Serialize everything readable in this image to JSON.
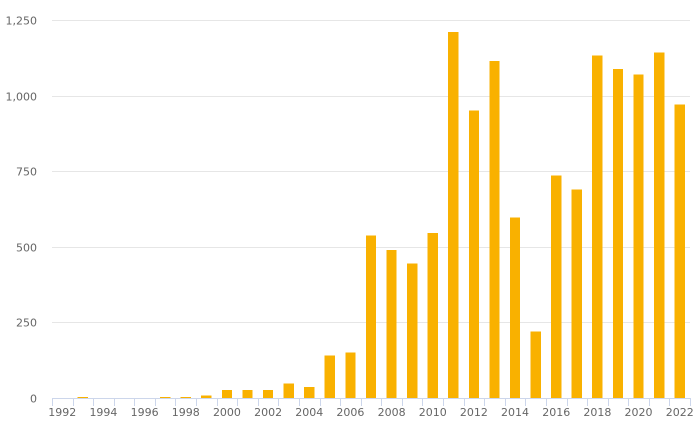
{
  "chart_data": {
    "type": "bar",
    "title": "",
    "xlabel": "",
    "ylabel": "",
    "color": "#f9b100",
    "grid": true,
    "legend": "none",
    "ylim": [
      0,
      1250
    ],
    "yticks": [
      0,
      250,
      500,
      750,
      1000,
      1250
    ],
    "ytick_labels": [
      "0",
      "250",
      "500",
      "750",
      "1,000",
      "1,250"
    ],
    "xtick_labels": [
      "1992",
      "1994",
      "1996",
      "1998",
      "2000",
      "2002",
      "2004",
      "2006",
      "2008",
      "2010",
      "2012",
      "2014",
      "2016",
      "2018",
      "2020",
      "2022"
    ],
    "categories": [
      "1992",
      "1993",
      "1994",
      "1995",
      "1996",
      "1997",
      "1998",
      "1999",
      "2000",
      "2001",
      "2002",
      "2003",
      "2004",
      "2005",
      "2006",
      "2007",
      "2008",
      "2009",
      "2010",
      "2011",
      "2012",
      "2013",
      "2014",
      "2015",
      "2016",
      "2017",
      "2018",
      "2019",
      "2020",
      "2021",
      "2022"
    ],
    "values": [
      0,
      3,
      0,
      0,
      0,
      3,
      4,
      8,
      27,
      27,
      27,
      48,
      37,
      140,
      150,
      538,
      490,
      445,
      545,
      1210,
      950,
      1115,
      597,
      220,
      735,
      690,
      1133,
      1088,
      1070,
      1142,
      970
    ]
  }
}
